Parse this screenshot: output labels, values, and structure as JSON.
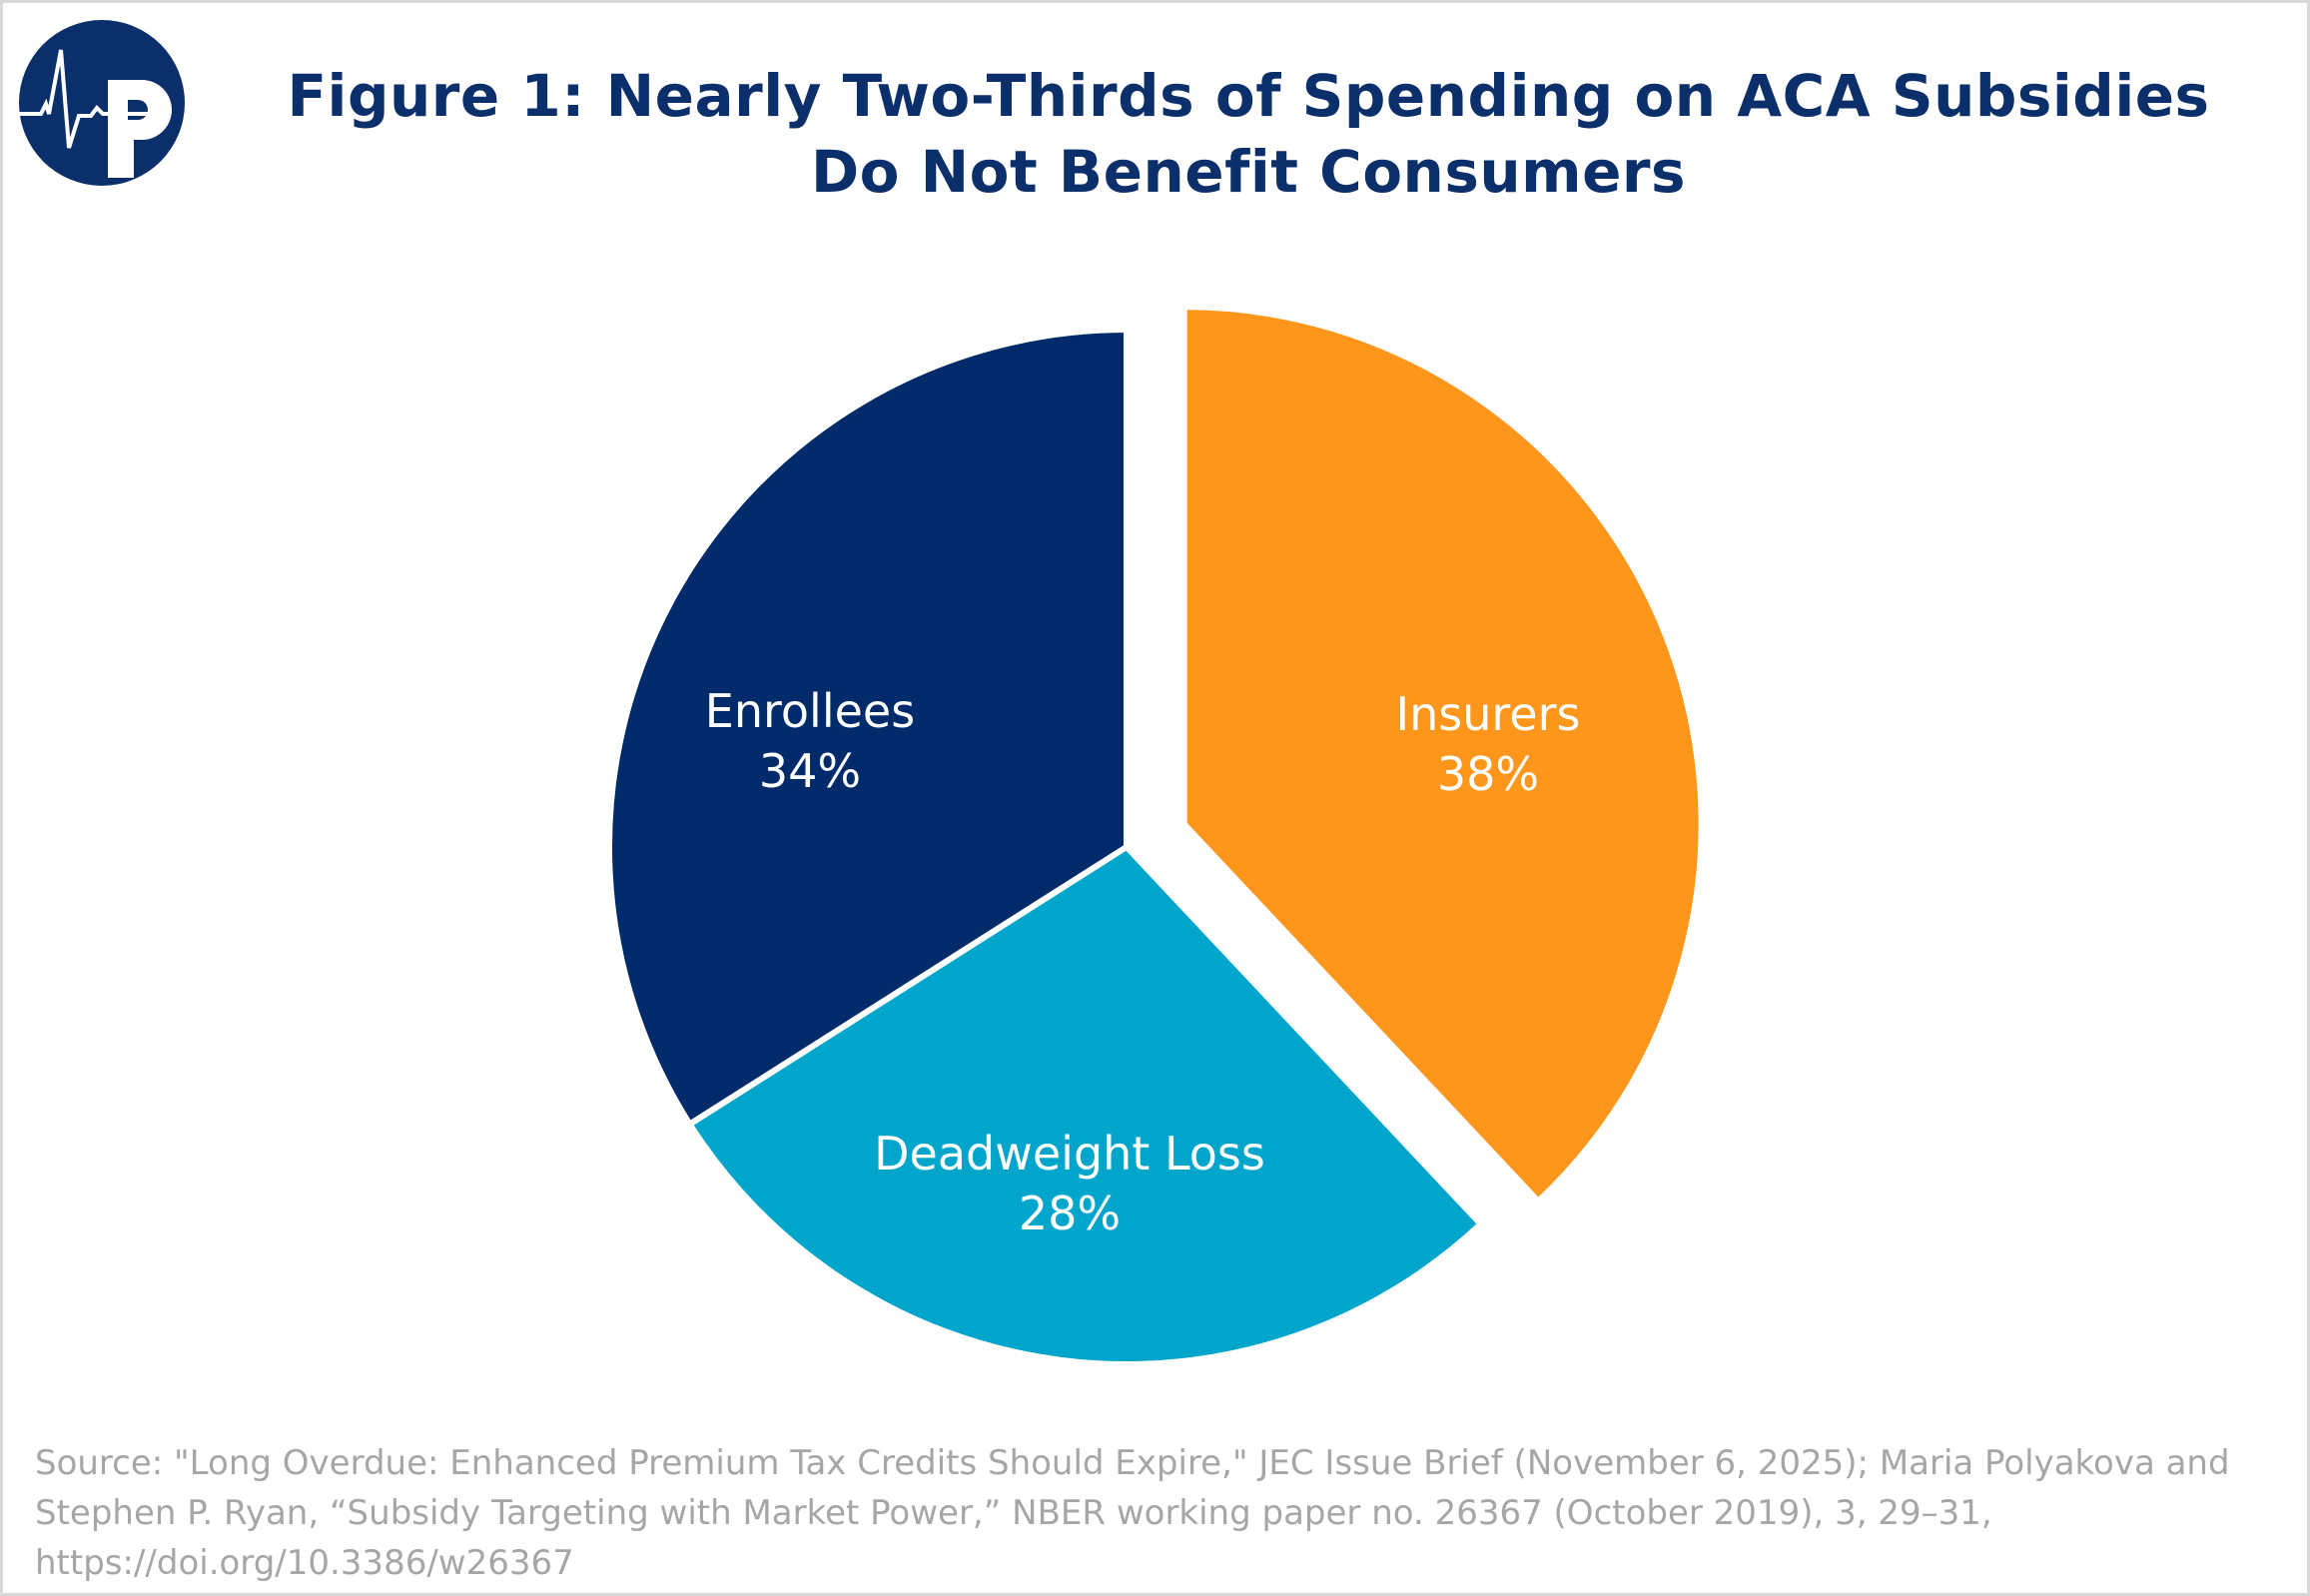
{
  "logo_text": "P",
  "title": {
    "line1": "Figure 1: Nearly Two-Thirds of Spending on ACA Subsidies",
    "line2": "Do Not Benefit Consumers"
  },
  "chart_data": {
    "type": "pie",
    "title": "Figure 1: Nearly Two-Thirds of Spending on ACA Subsidies Do Not Benefit Consumers",
    "slices": [
      {
        "label": "Insurers",
        "value": 38,
        "display": "38%",
        "color": "#ff961c",
        "exploded": true
      },
      {
        "label": "Deadweight Loss",
        "value": 28,
        "display": "28%",
        "color": "#00a5cc",
        "exploded": false
      },
      {
        "label": "Enrollees",
        "value": 34,
        "display": "34%",
        "color": "#002b6b",
        "exploded": false
      }
    ]
  },
  "source": {
    "line1": "Source: \"Long Overdue: Enhanced Premium Tax Credits Should Expire,\" JEC Issue Brief (November 6, 2025); Maria Polyakova and",
    "line2": "Stephen P. Ryan, “Subsidy Targeting with Market Power,” NBER working paper no. 26367 (October 2019), 3, 29–31,",
    "line3": "https://doi.org/10.3386/w26367"
  }
}
